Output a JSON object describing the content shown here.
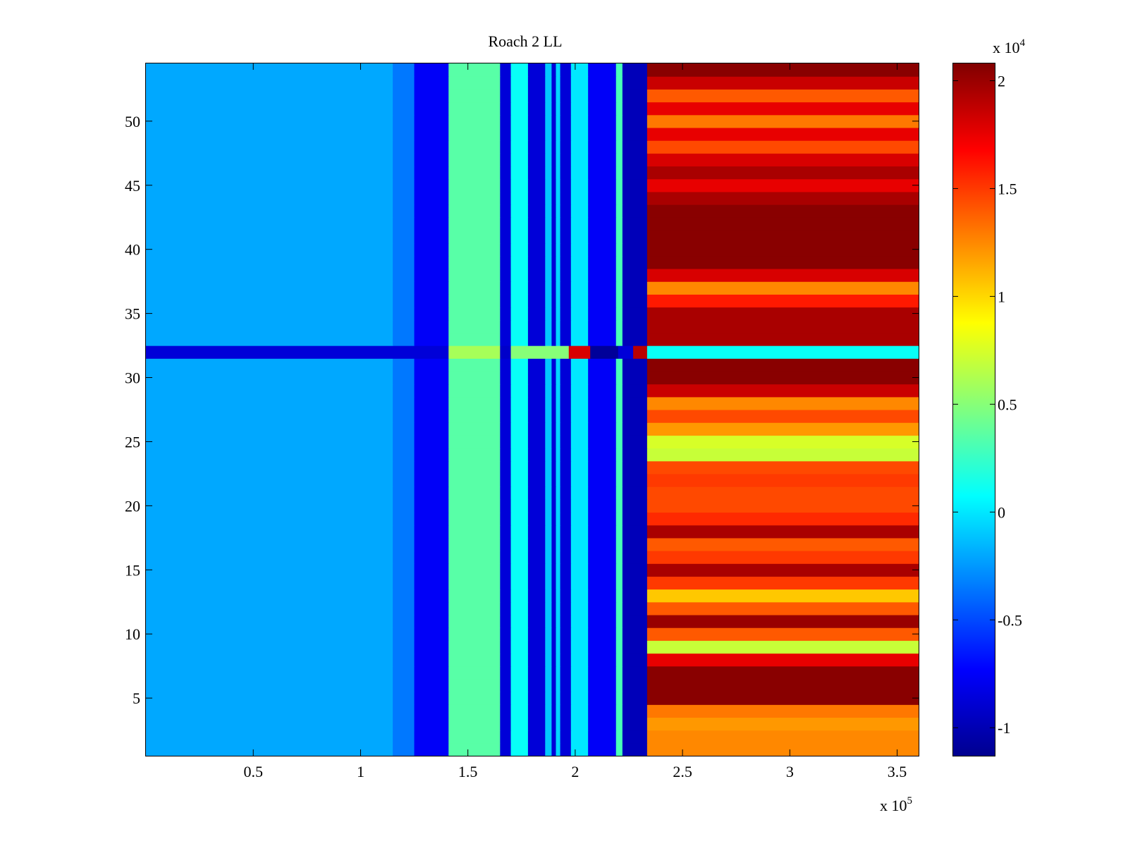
{
  "chart_data": {
    "type": "heatmap",
    "title": "Roach 2 LL",
    "xlabel": "",
    "ylabel": "",
    "x_multiplier_label": "x 10",
    "x_multiplier_exponent": "5",
    "xlim": [
      0,
      3.6
    ],
    "x_ticks": [
      0.5,
      1,
      1.5,
      2,
      2.5,
      3,
      3.5
    ],
    "x_tick_labels": [
      "0.5",
      "1",
      "1.5",
      "2",
      "2.5",
      "3",
      "3.5"
    ],
    "ylim": [
      0.5,
      54.5
    ],
    "y_ticks": [
      5,
      10,
      15,
      20,
      25,
      30,
      35,
      40,
      45,
      50
    ],
    "y_tick_labels": [
      "5",
      "10",
      "15",
      "20",
      "25",
      "30",
      "35",
      "40",
      "45",
      "50"
    ],
    "colorbar": {
      "colormap": "jet",
      "clim": [
        -1.13,
        2.08
      ],
      "ticks": [
        -1,
        -0.5,
        0,
        0.5,
        1,
        1.5,
        2
      ],
      "tick_labels": [
        "-1",
        "-0.5",
        "0",
        "0.5",
        "1",
        "1.5",
        "2"
      ],
      "multiplier_label": "x 10",
      "multiplier_exponent": "4"
    },
    "channels": 54,
    "column_bands": [
      {
        "x_start": 0.0,
        "x_end": 1.15,
        "value": -0.2
      },
      {
        "x_start": 1.15,
        "x_end": 1.25,
        "value": -0.35
      },
      {
        "x_start": 1.25,
        "x_end": 1.41,
        "value": -0.75
      },
      {
        "x_start": 1.41,
        "x_end": 1.65,
        "value": 0.35
      },
      {
        "x_start": 1.65,
        "x_end": 1.7,
        "value": -0.85
      },
      {
        "x_start": 1.7,
        "x_end": 1.78,
        "value": 0.1
      },
      {
        "x_start": 1.78,
        "x_end": 1.86,
        "value": -0.85
      },
      {
        "x_start": 1.86,
        "x_end": 1.89,
        "value": -0.1
      },
      {
        "x_start": 1.89,
        "x_end": 1.91,
        "value": -0.85
      },
      {
        "x_start": 1.91,
        "x_end": 1.93,
        "value": -0.05
      },
      {
        "x_start": 1.93,
        "x_end": 1.98,
        "value": -0.85
      },
      {
        "x_start": 1.98,
        "x_end": 2.06,
        "value": 0.0
      },
      {
        "x_start": 2.06,
        "x_end": 2.19,
        "value": -0.75
      },
      {
        "x_start": 2.19,
        "x_end": 2.22,
        "value": 0.3
      },
      {
        "x_start": 2.22,
        "x_end": 2.335,
        "value": -0.95
      }
    ],
    "channel_32_row_bands": [
      {
        "x_start": 0.0,
        "x_end": 1.41,
        "value": -0.85
      },
      {
        "x_start": 1.41,
        "x_end": 1.65,
        "value": 0.6
      },
      {
        "x_start": 1.65,
        "x_end": 1.7,
        "value": -0.9
      },
      {
        "x_start": 1.7,
        "x_end": 1.97,
        "value": 0.5
      },
      {
        "x_start": 1.97,
        "x_end": 2.07,
        "value": 1.8
      },
      {
        "x_start": 2.07,
        "x_end": 2.2,
        "value": -1.05
      },
      {
        "x_start": 2.2,
        "x_end": 2.27,
        "value": -0.85
      },
      {
        "x_start": 2.27,
        "x_end": 2.335,
        "value": 1.9
      }
    ],
    "high_region": {
      "x_start": 2.335,
      "x_end": 3.6,
      "channel_values": [
        1.25,
        1.25,
        1.2,
        1.3,
        2.05,
        2.05,
        2.05,
        1.75,
        0.7,
        1.4,
        2.0,
        1.4,
        1.05,
        1.5,
        1.95,
        1.5,
        1.4,
        1.95,
        1.55,
        1.45,
        1.45,
        1.5,
        1.45,
        0.7,
        0.75,
        1.2,
        1.45,
        1.25,
        1.85,
        2.05,
        2.05,
        0.1,
        1.95,
        1.95,
        1.95,
        1.6,
        1.25,
        1.8,
        2.05,
        2.05,
        2.05,
        2.05,
        2.05,
        1.95,
        1.75,
        1.95,
        1.8,
        1.45,
        1.75,
        1.3,
        1.75,
        1.4,
        1.85,
        2.05
      ]
    }
  }
}
